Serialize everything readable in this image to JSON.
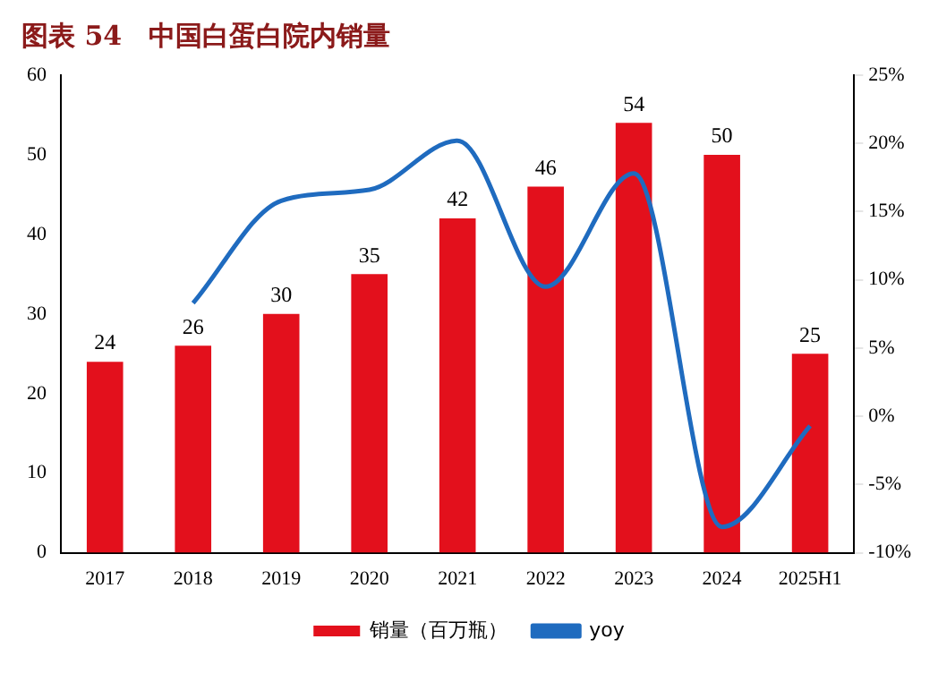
{
  "chart_data": {
    "type": "bar",
    "title": "图表 54　中国白蛋白院内销量",
    "categories": [
      "2017",
      "2018",
      "2019",
      "2020",
      "2021",
      "2022",
      "2023",
      "2024",
      "2025H1"
    ],
    "series": [
      {
        "name": "销量（百万瓶）",
        "color": "#e3101c",
        "values": [
          24,
          26,
          30,
          35,
          42,
          46,
          54,
          50,
          25
        ],
        "value_labels": [
          "24",
          "26",
          "30",
          "35",
          "42",
          "46",
          "54",
          "50",
          "25"
        ]
      },
      {
        "name": "yoy",
        "type": "line",
        "axis": "y2",
        "color": "#1f6bbf",
        "values": [
          null,
          8.3,
          15.8,
          16.6,
          20.2,
          9.5,
          17.8,
          -8.1,
          -0.7
        ]
      }
    ],
    "ylim": [
      0,
      60
    ],
    "yticks": [
      0,
      10,
      20,
      30,
      40,
      50,
      60
    ],
    "y2lim": [
      -10,
      25
    ],
    "y2ticks": [
      {
        "value": -10,
        "label": "-10%"
      },
      {
        "value": -5,
        "label": "-5%"
      },
      {
        "value": 0,
        "label": "0%"
      },
      {
        "value": 5,
        "label": "5%"
      },
      {
        "value": 10,
        "label": "10%"
      },
      {
        "value": 15,
        "label": "15%"
      },
      {
        "value": 20,
        "label": "20%"
      },
      {
        "value": 25,
        "label": "25%"
      }
    ],
    "grid": false,
    "legend": "bottom",
    "marker": "none"
  }
}
